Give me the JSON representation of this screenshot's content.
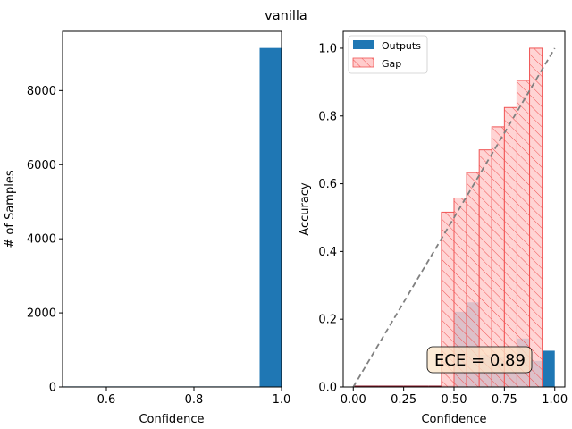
{
  "title": "vanilla",
  "colors": {
    "bar": "#1f77b4",
    "gap_fill": "#ffcccc",
    "gap_edge": "#f05454",
    "diagonal": "#808080",
    "ece_box_fill": "#fbe6c8"
  },
  "chart_data": [
    {
      "type": "bar",
      "name": "confidence-histogram",
      "xlabel": "Confidence",
      "ylabel": "# of Samples",
      "xlim": [
        0.5,
        1.0
      ],
      "ylim": [
        0,
        9600
      ],
      "xticks": [
        "0.6",
        "0.8",
        "1.0"
      ],
      "yticks": [
        "0",
        "2000",
        "4000",
        "6000",
        "8000"
      ],
      "bins": [
        {
          "x0": 0.5,
          "x1": 0.95,
          "value": 15
        },
        {
          "x0": 0.95,
          "x1": 1.0,
          "value": 9150
        }
      ]
    },
    {
      "type": "bar",
      "name": "reliability-diagram",
      "xlabel": "Confidence",
      "ylabel": "Accuracy",
      "xlim": [
        -0.05,
        1.05
      ],
      "ylim": [
        0,
        1.05
      ],
      "xticks": [
        "0.00",
        "0.25",
        "0.50",
        "0.75",
        "1.00"
      ],
      "yticks": [
        "0.0",
        "0.2",
        "0.4",
        "0.6",
        "0.8",
        "1.0"
      ],
      "legend": {
        "position": "top-left",
        "entries": [
          "Outputs",
          "Gap"
        ]
      },
      "bin_width": 0.0625,
      "outputs": [
        {
          "x0": 0.0,
          "value": 0.0
        },
        {
          "x0": 0.0625,
          "value": 0.0
        },
        {
          "x0": 0.125,
          "value": 0.0
        },
        {
          "x0": 0.1875,
          "value": 0.0
        },
        {
          "x0": 0.25,
          "value": 0.0
        },
        {
          "x0": 0.3125,
          "value": 0.0
        },
        {
          "x0": 0.375,
          "value": 0.0
        },
        {
          "x0": 0.4375,
          "value": 0.0
        },
        {
          "x0": 0.5,
          "value": 0.222
        },
        {
          "x0": 0.5625,
          "value": 0.25
        },
        {
          "x0": 0.625,
          "value": 0.095
        },
        {
          "x0": 0.6875,
          "value": 0.087
        },
        {
          "x0": 0.75,
          "value": 0.077
        },
        {
          "x0": 0.8125,
          "value": 0.143
        },
        {
          "x0": 0.875,
          "value": 0.077
        },
        {
          "x0": 0.9375,
          "value": 0.107
        }
      ],
      "gap": [
        {
          "x0": 0.4375,
          "top": 0.516
        },
        {
          "x0": 0.5,
          "top": 0.558
        },
        {
          "x0": 0.5625,
          "top": 0.633
        },
        {
          "x0": 0.625,
          "top": 0.7
        },
        {
          "x0": 0.6875,
          "top": 0.768
        },
        {
          "x0": 0.75,
          "top": 0.825
        },
        {
          "x0": 0.8125,
          "top": 0.905
        },
        {
          "x0": 0.875,
          "top": 1.0
        }
      ],
      "diagonal": [
        [
          0,
          0
        ],
        [
          1,
          1
        ]
      ],
      "annotation": "ECE = 0.89"
    }
  ]
}
